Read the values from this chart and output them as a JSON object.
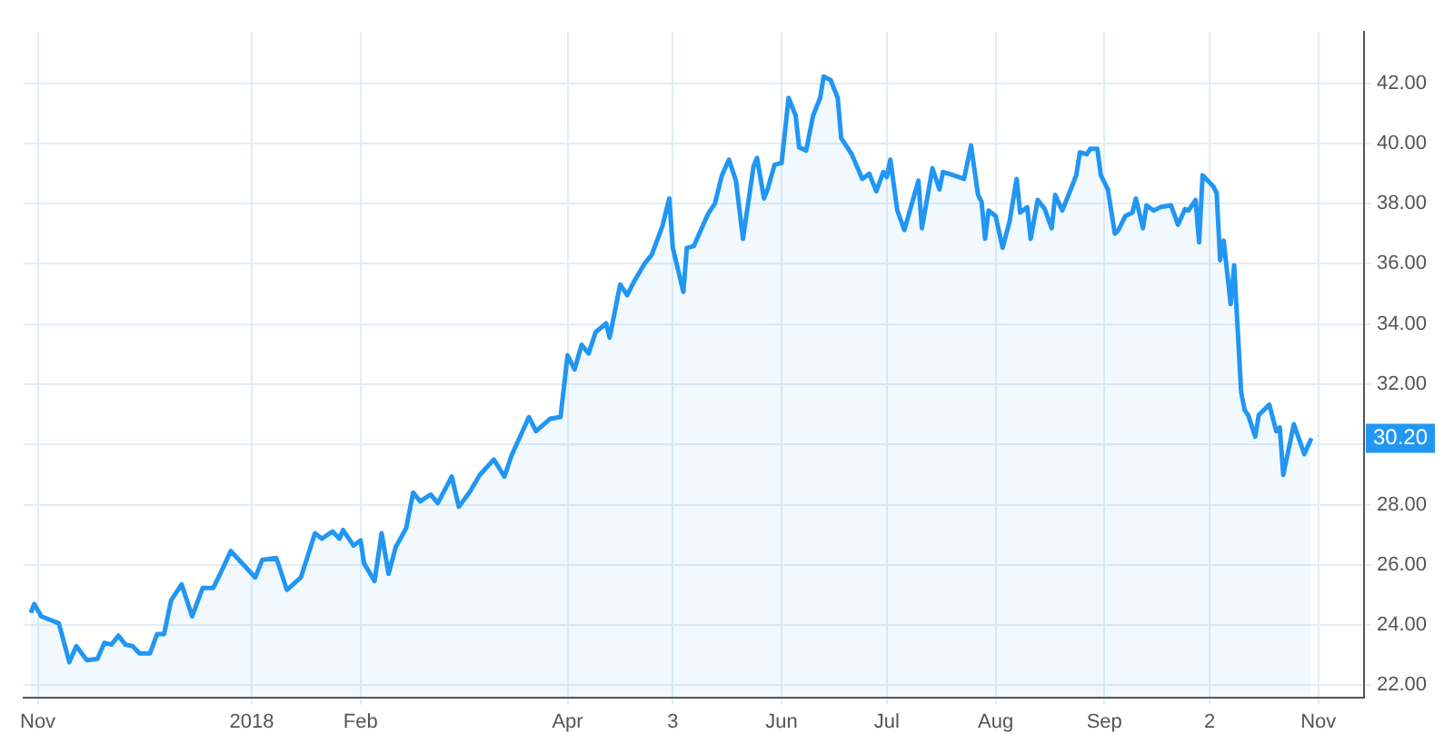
{
  "chart_data": {
    "type": "area",
    "x": [
      "2017-10-30",
      "2017-10-31",
      "2017-11-02",
      "2017-11-07",
      "2017-11-10",
      "2017-11-12",
      "2017-11-15",
      "2017-11-18",
      "2017-11-20",
      "2017-11-22",
      "2017-11-24",
      "2017-11-26",
      "2017-11-28",
      "2017-11-30",
      "2017-12-03",
      "2017-12-05",
      "2017-12-07",
      "2017-12-09",
      "2017-12-12",
      "2017-12-15",
      "2017-12-18",
      "2017-12-21",
      "2017-12-23",
      "2017-12-26",
      "2018-01-02",
      "2018-01-04",
      "2018-01-08",
      "2018-01-11",
      "2018-01-15",
      "2018-01-19",
      "2018-01-21",
      "2018-01-24",
      "2018-01-26",
      "2018-01-27",
      "2018-01-30",
      "2018-02-01",
      "2018-02-02",
      "2018-02-05",
      "2018-02-07",
      "2018-02-09",
      "2018-02-11",
      "2018-02-14",
      "2018-02-16",
      "2018-02-18",
      "2018-02-21",
      "2018-02-23",
      "2018-02-27",
      "2018-03-01",
      "2018-03-04",
      "2018-03-07",
      "2018-03-11",
      "2018-03-14",
      "2018-03-16",
      "2018-03-21",
      "2018-03-23",
      "2018-03-27",
      "2018-03-30",
      "2018-04-01",
      "2018-04-03",
      "2018-04-05",
      "2018-04-07",
      "2018-04-09",
      "2018-04-12",
      "2018-04-13",
      "2018-04-16",
      "2018-04-18",
      "2018-04-20",
      "2018-04-23",
      "2018-04-25",
      "2018-04-28",
      "2018-04-30",
      "2018-05-01",
      "2018-05-04",
      "2018-05-05",
      "2018-05-07",
      "2018-05-11",
      "2018-05-13",
      "2018-05-15",
      "2018-05-17",
      "2018-05-19",
      "2018-05-21",
      "2018-05-24",
      "2018-05-25",
      "2018-05-27",
      "2018-05-28",
      "2018-05-30",
      "2018-06-01",
      "2018-06-03",
      "2018-06-05",
      "2018-06-06",
      "2018-06-08",
      "2018-06-10",
      "2018-06-12",
      "2018-06-13",
      "2018-06-15",
      "2018-06-17",
      "2018-06-18",
      "2018-06-21",
      "2018-06-24",
      "2018-06-26",
      "2018-06-28",
      "2018-06-30",
      "2018-07-01",
      "2018-07-02",
      "2018-07-04",
      "2018-07-06",
      "2018-07-10",
      "2018-07-11",
      "2018-07-14",
      "2018-07-16",
      "2018-07-17",
      "2018-07-20",
      "2018-07-23",
      "2018-07-25",
      "2018-07-27",
      "2018-07-28",
      "2018-07-29",
      "2018-07-30",
      "2018-08-01",
      "2018-08-03",
      "2018-08-05",
      "2018-08-07",
      "2018-08-08",
      "2018-08-10",
      "2018-08-11",
      "2018-08-13",
      "2018-08-15",
      "2018-08-17",
      "2018-08-18",
      "2018-08-20",
      "2018-08-22",
      "2018-08-24",
      "2018-08-25",
      "2018-08-27",
      "2018-08-28",
      "2018-08-30",
      "2018-08-31",
      "2018-09-02",
      "2018-09-04",
      "2018-09-05",
      "2018-09-07",
      "2018-09-09",
      "2018-09-10",
      "2018-09-12",
      "2018-09-13",
      "2018-09-15",
      "2018-09-17",
      "2018-09-20",
      "2018-09-22",
      "2018-09-24",
      "2018-09-25",
      "2018-09-27",
      "2018-09-28",
      "2018-09-29",
      "2018-10-02",
      "2018-10-03",
      "2018-10-04",
      "2018-10-05",
      "2018-10-07",
      "2018-10-08",
      "2018-10-10",
      "2018-10-11",
      "2018-10-12",
      "2018-10-14",
      "2018-10-15",
      "2018-10-18",
      "2018-10-20",
      "2018-10-21",
      "2018-10-22",
      "2018-10-25",
      "2018-10-28",
      "2018-10-30"
    ],
    "series": [
      {
        "color": "#2196f3",
        "values": [
          24.41,
          24.7,
          24.29,
          24.06,
          22.77,
          23.3,
          22.83,
          22.88,
          23.41,
          23.35,
          23.65,
          23.35,
          23.3,
          23.06,
          23.06,
          23.7,
          23.7,
          24.82,
          25.35,
          24.29,
          25.23,
          25.23,
          25.7,
          26.46,
          25.58,
          26.17,
          26.23,
          25.17,
          25.58,
          27.05,
          26.87,
          27.11,
          26.87,
          27.16,
          26.64,
          26.81,
          26.05,
          25.46,
          27.05,
          25.7,
          26.58,
          27.22,
          28.4,
          28.11,
          28.34,
          28.05,
          28.93,
          27.93,
          28.4,
          28.99,
          29.5,
          28.93,
          29.62,
          30.91,
          30.44,
          30.85,
          30.91,
          32.96,
          32.49,
          33.31,
          33.02,
          33.73,
          34.02,
          33.55,
          35.31,
          34.96,
          35.42,
          36.01,
          36.3,
          37.24,
          38.17,
          36.53,
          35.07,
          36.53,
          36.59,
          37.65,
          38.0,
          38.94,
          39.46,
          38.76,
          36.83,
          39.23,
          39.52,
          38.17,
          38.47,
          39.29,
          39.35,
          41.51,
          40.93,
          39.87,
          39.76,
          40.93,
          41.51,
          42.22,
          42.1,
          41.51,
          40.17,
          39.64,
          38.82,
          38.99,
          38.41,
          39.05,
          38.88,
          39.46,
          37.77,
          37.12,
          38.76,
          37.18,
          39.17,
          38.47,
          39.05,
          38.94,
          38.82,
          39.93,
          38.29,
          38.06,
          36.83,
          37.77,
          37.59,
          36.53,
          37.41,
          38.82,
          37.7,
          37.88,
          36.83,
          38.12,
          37.82,
          37.18,
          38.29,
          37.77,
          38.35,
          38.94,
          39.7,
          39.64,
          39.82,
          39.82,
          38.94,
          38.47,
          37.0,
          37.12,
          37.59,
          37.7,
          38.17,
          37.18,
          37.94,
          37.77,
          37.88,
          37.94,
          37.3,
          37.82,
          37.77,
          38.12,
          36.71,
          38.94,
          38.58,
          38.35,
          36.12,
          36.77,
          34.66,
          35.95,
          31.73,
          31.14,
          30.97,
          30.26,
          30.97,
          31.32,
          30.44,
          30.56,
          28.99,
          30.67,
          29.68,
          30.2
        ]
      }
    ],
    "xlim": [
      "2017-10-28",
      "2018-11-14"
    ],
    "xticks": [
      {
        "value": "2017-11-01",
        "label": "Nov"
      },
      {
        "value": "2018-01-01",
        "label": "2018"
      },
      {
        "value": "2018-02-01",
        "label": "Feb"
      },
      {
        "value": "2018-04-01",
        "label": "Apr"
      },
      {
        "value": "2018-05-01",
        "label": "3"
      },
      {
        "value": "2018-06-01",
        "label": "Jun"
      },
      {
        "value": "2018-07-01",
        "label": "Jul"
      },
      {
        "value": "2018-08-01",
        "label": "Aug"
      },
      {
        "value": "2018-09-01",
        "label": "Sep"
      },
      {
        "value": "2018-10-01",
        "label": "2"
      },
      {
        "value": "2018-11-01",
        "label": "Nov"
      }
    ],
    "ylim": [
      21.6,
      43.7
    ],
    "yticks": [
      {
        "value": 22,
        "label": "22.00"
      },
      {
        "value": 24,
        "label": "24.00"
      },
      {
        "value": 26,
        "label": "26.00"
      },
      {
        "value": 28,
        "label": "28.00"
      },
      {
        "value": 30,
        "label": null
      },
      {
        "value": 32,
        "label": "32.00"
      },
      {
        "value": 34,
        "label": "34.00"
      },
      {
        "value": 36,
        "label": "36.00"
      },
      {
        "value": 38,
        "label": "38.00"
      },
      {
        "value": 40,
        "label": "40.00"
      },
      {
        "value": 42,
        "label": "42.00"
      }
    ],
    "annotations": [
      {
        "text": "30.20",
        "x": "2018-10-30",
        "y": 30.2
      }
    ],
    "grid": true,
    "legend": false,
    "marker": "none",
    "line_style": "solid"
  }
}
